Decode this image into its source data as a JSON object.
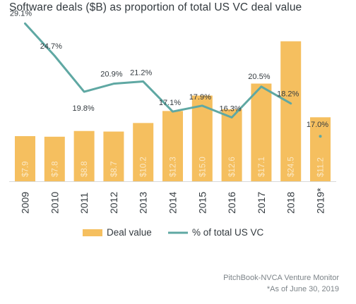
{
  "title": "Software deals ($B) as proportion of total US VC deal value",
  "source": "PitchBook-NVCA Venture Monitor",
  "footnote": "*As of June 30, 2019",
  "colors": {
    "bar": "#f5bf5f",
    "line": "#5fa8a3",
    "bar_label": "#fbe8c4",
    "text": "#333a3f"
  },
  "chart_data": {
    "type": "bar",
    "categories": [
      "2009",
      "2010",
      "2011",
      "2012",
      "2013",
      "2014",
      "2015",
      "2016",
      "2017",
      "2018",
      "2019*"
    ],
    "series": [
      {
        "name": "Deal value",
        "type": "bar",
        "values": [
          7.9,
          7.8,
          8.8,
          8.7,
          10.2,
          12.3,
          15.0,
          12.6,
          17.1,
          24.5,
          11.2
        ],
        "labels": [
          "$7.9",
          "$7.8",
          "$8.8",
          "$8.7",
          "$10.2",
          "$12.3",
          "$15.0",
          "$12.6",
          "$17.1",
          "$24.5",
          "$11.2"
        ]
      },
      {
        "name": "% of total US VC",
        "type": "line",
        "values": [
          29.1,
          24.7,
          19.8,
          20.9,
          21.2,
          17.1,
          17.9,
          16.3,
          20.5,
          18.2,
          17.0
        ],
        "labels": [
          "29.1%",
          "24.7%",
          "19.8%",
          "20.9%",
          "21.2%",
          "17.1%",
          "17.9%",
          "16.3%",
          "20.5%",
          "18.2%",
          "17.0%"
        ]
      }
    ],
    "legend": {
      "position": "bottom",
      "items": [
        "Deal value",
        "% of total US VC"
      ]
    },
    "ylim_bar": [
      0,
      27
    ],
    "ylim_line": [
      0,
      32
    ]
  }
}
